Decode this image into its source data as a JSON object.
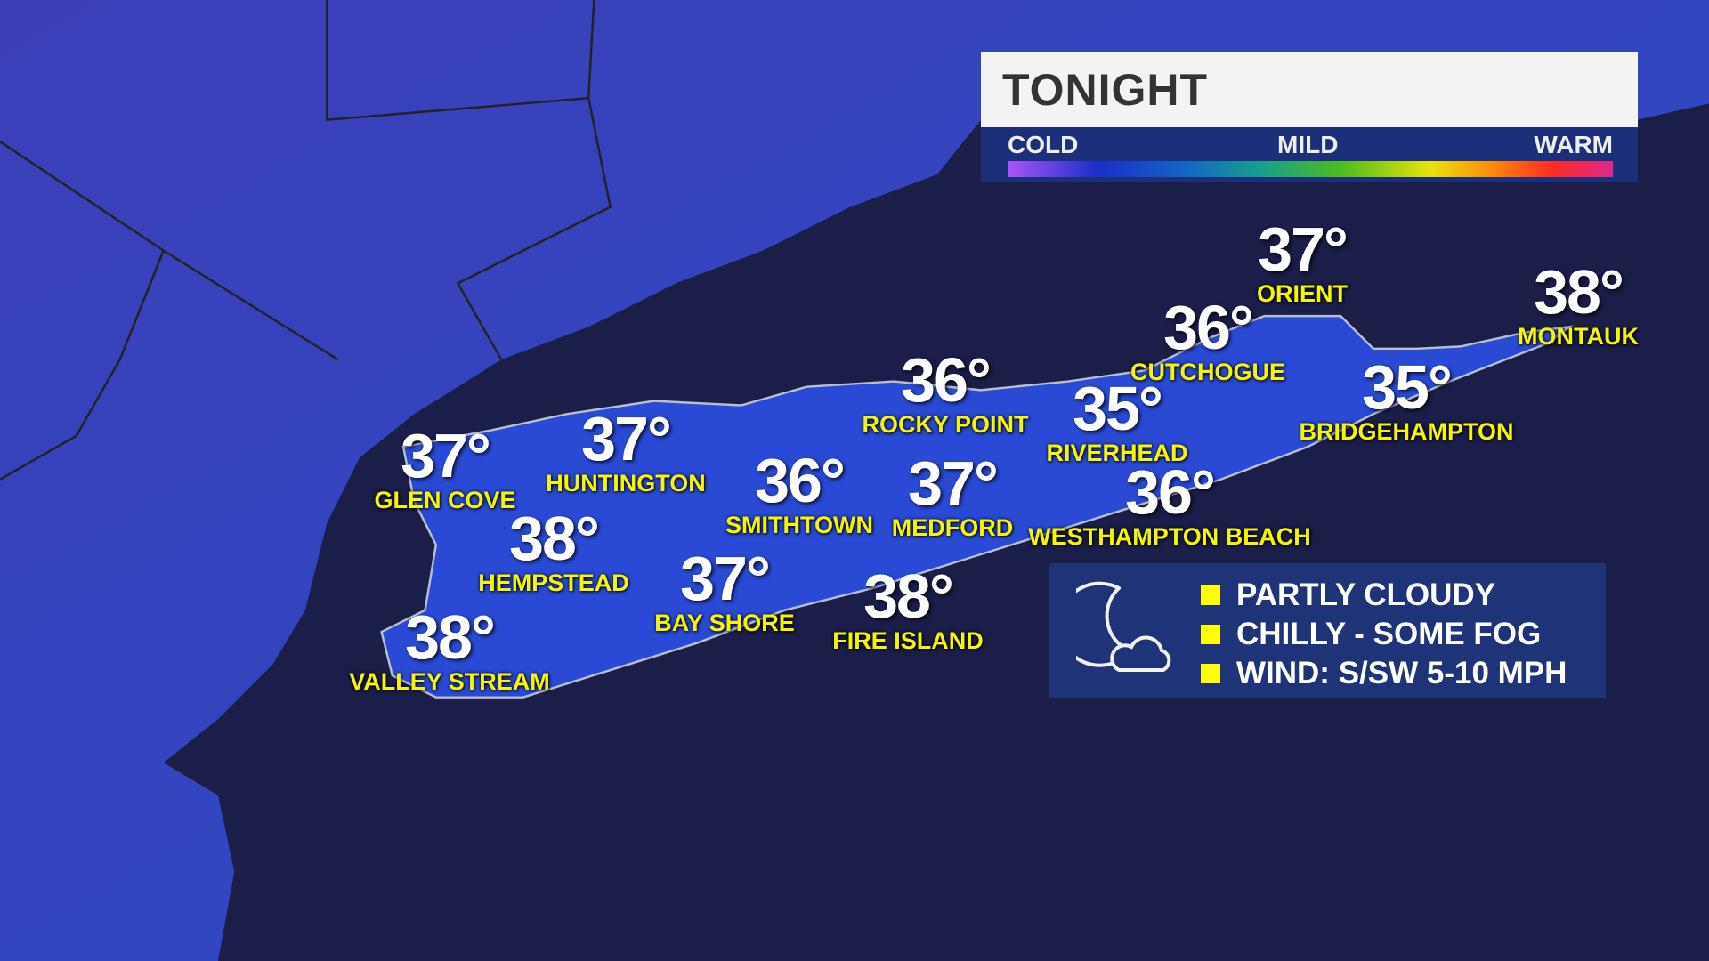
{
  "header": {
    "title": "TONIGHT"
  },
  "legend": {
    "cold": "COLD",
    "mild": "MILD",
    "warm": "WARM"
  },
  "colors": {
    "land": "#2f44c4",
    "ocean": "#1a1e48",
    "temp_text": "#ffffff",
    "name_text": "#f5f50a",
    "panel": "#1f3378"
  },
  "cities": [
    {
      "name": "GLEN COVE",
      "temp": "37°"
    },
    {
      "name": "HUNTINGTON",
      "temp": "37°"
    },
    {
      "name": "HEMPSTEAD",
      "temp": "38°"
    },
    {
      "name": "VALLEY STREAM",
      "temp": "38°"
    },
    {
      "name": "SMITHTOWN",
      "temp": "36°"
    },
    {
      "name": "BAY SHORE",
      "temp": "37°"
    },
    {
      "name": "ROCKY POINT",
      "temp": "36°"
    },
    {
      "name": "MEDFORD",
      "temp": "37°"
    },
    {
      "name": "FIRE ISLAND",
      "temp": "38°"
    },
    {
      "name": "RIVERHEAD",
      "temp": "35°"
    },
    {
      "name": "WESTHAMPTON BEACH",
      "temp": "36°"
    },
    {
      "name": "CUTCHOGUE",
      "temp": "36°"
    },
    {
      "name": "ORIENT",
      "temp": "37°"
    },
    {
      "name": "BRIDGEHAMPTON",
      "temp": "35°"
    },
    {
      "name": "MONTAUK",
      "temp": "38°"
    }
  ],
  "conditions": {
    "icon": "moon-cloud-icon",
    "items": [
      "PARTLY CLOUDY",
      "CHILLY - SOME FOG",
      "WIND: S/SW 5-10 MPH"
    ]
  }
}
